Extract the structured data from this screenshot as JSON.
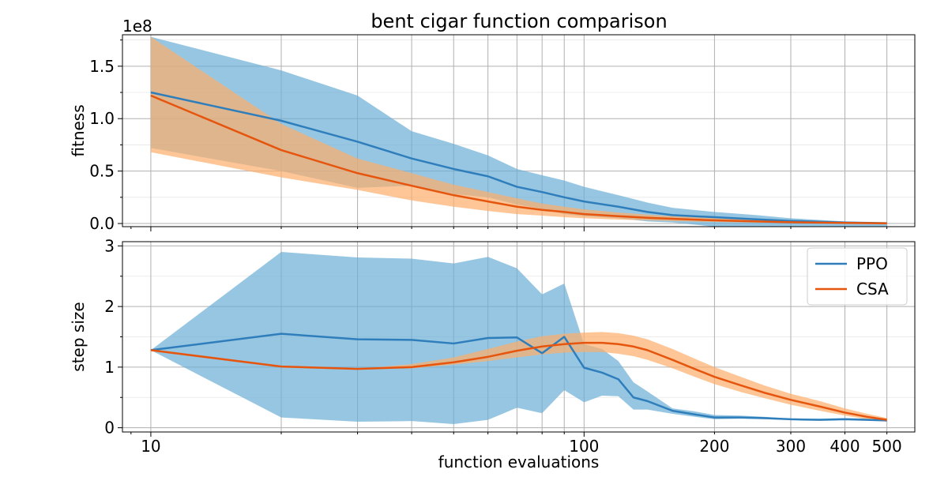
{
  "title": "bent cigar function comparison",
  "chart_data": [
    {
      "type": "line",
      "title": "bent cigar function comparison",
      "xlabel": "",
      "ylabel": "fitness",
      "x_scale": "log",
      "xlim": [
        8.6,
        580
      ],
      "ylim": [
        -3000000,
        180000000
      ],
      "y_offset_text": "1e8",
      "yticks": [
        0,
        50000000,
        100000000,
        150000000
      ],
      "yticklabels": [
        "0.0",
        "0.5",
        "1.0",
        "1.5"
      ],
      "grid": true,
      "series": [
        {
          "name": "PPO",
          "color": "#2f7ebc",
          "band_color": "#6baed6",
          "x": [
            10,
            20,
            30,
            40,
            50,
            60,
            70,
            80,
            90,
            100,
            120,
            140,
            160,
            200,
            250,
            300,
            400,
            500
          ],
          "values": [
            125000000,
            98000000,
            78000000,
            62000000,
            52000000,
            45000000,
            35000000,
            30000000,
            25000000,
            21000000,
            16000000,
            11000000,
            8000000,
            6000000,
            4000000,
            2500000,
            1000000,
            300000
          ],
          "upper": [
            178000000,
            146000000,
            122000000,
            88000000,
            76000000,
            65000000,
            52000000,
            46000000,
            41000000,
            35000000,
            27000000,
            20000000,
            15000000,
            11000000,
            8000000,
            5000000,
            2000000,
            800000
          ],
          "lower": [
            72000000,
            50000000,
            34000000,
            36000000,
            28000000,
            25000000,
            18000000,
            14000000,
            9000000,
            7000000,
            5000000,
            2000000,
            1000000,
            -3000000,
            -3000000,
            -3000000,
            -3000000,
            -3000000
          ]
        },
        {
          "name": "CSA",
          "color": "#e6550d",
          "band_color": "#fdae6b",
          "x": [
            10,
            20,
            30,
            40,
            50,
            60,
            70,
            80,
            90,
            100,
            120,
            140,
            160,
            200,
            250,
            300,
            400,
            500
          ],
          "values": [
            122000000,
            70000000,
            48000000,
            36000000,
            27000000,
            21000000,
            16000000,
            13000000,
            11000000,
            9000000,
            7000000,
            5500000,
            4500000,
            3000000,
            2000000,
            1200000,
            600000,
            200000
          ],
          "upper": [
            178000000,
            95000000,
            62000000,
            48000000,
            37000000,
            30000000,
            24000000,
            19000000,
            16000000,
            13500000,
            10500000,
            8500000,
            7000000,
            5000000,
            3500000,
            2200000,
            1200000,
            400000
          ],
          "lower": [
            68000000,
            44000000,
            32000000,
            22000000,
            16000000,
            12000000,
            9000000,
            7500000,
            6000000,
            5000000,
            3800000,
            3000000,
            2400000,
            1500000,
            900000,
            500000,
            200000,
            50000
          ]
        }
      ]
    },
    {
      "type": "line",
      "title": "",
      "xlabel": "function evaluations",
      "ylabel": "step size",
      "x_scale": "log",
      "xlim": [
        8.6,
        580
      ],
      "ylim": [
        -0.07,
        3.07
      ],
      "xticks": [
        10,
        100,
        200,
        300,
        400,
        500
      ],
      "xticklabels": [
        "10",
        "100",
        "200",
        "300",
        "400",
        "500"
      ],
      "yticks": [
        0,
        1,
        2,
        3
      ],
      "yticklabels": [
        "0",
        "1",
        "2",
        "3"
      ],
      "grid": true,
      "legend": "top-right",
      "series": [
        {
          "name": "PPO",
          "color": "#2f7ebc",
          "band_color": "#6baed6",
          "x": [
            10,
            20,
            30,
            40,
            50,
            60,
            70,
            80,
            90,
            100,
            110,
            120,
            130,
            140,
            160,
            180,
            200,
            230,
            260,
            300,
            350,
            400,
            450,
            500
          ],
          "values": [
            1.28,
            1.55,
            1.46,
            1.45,
            1.39,
            1.48,
            1.49,
            1.23,
            1.5,
            0.99,
            0.91,
            0.8,
            0.5,
            0.44,
            0.28,
            0.22,
            0.17,
            0.17,
            0.16,
            0.14,
            0.13,
            0.14,
            0.13,
            0.12
          ],
          "upper": [
            1.28,
            2.9,
            2.81,
            2.79,
            2.71,
            2.82,
            2.63,
            2.2,
            2.38,
            1.38,
            1.3,
            1.1,
            0.75,
            0.6,
            0.32,
            0.27,
            0.21,
            0.2,
            0.18,
            0.15,
            0.15,
            0.16,
            0.15,
            0.13
          ],
          "lower": [
            1.28,
            0.17,
            0.1,
            0.11,
            0.06,
            0.13,
            0.33,
            0.24,
            0.62,
            0.42,
            0.53,
            0.52,
            0.3,
            0.3,
            0.23,
            0.18,
            0.14,
            0.15,
            0.14,
            0.13,
            0.12,
            0.13,
            0.12,
            0.11
          ]
        },
        {
          "name": "CSA",
          "color": "#e6550d",
          "band_color": "#fdae6b",
          "x": [
            10,
            20,
            30,
            40,
            50,
            60,
            70,
            80,
            90,
            100,
            110,
            120,
            130,
            140,
            160,
            180,
            200,
            230,
            260,
            300,
            350,
            400,
            450,
            500
          ],
          "values": [
            1.28,
            1.01,
            0.97,
            1.0,
            1.08,
            1.17,
            1.27,
            1.34,
            1.38,
            1.4,
            1.4,
            1.38,
            1.34,
            1.28,
            1.12,
            0.97,
            0.84,
            0.7,
            0.58,
            0.46,
            0.35,
            0.25,
            0.18,
            0.13
          ],
          "upper": [
            1.28,
            1.01,
            0.97,
            1.05,
            1.16,
            1.3,
            1.42,
            1.51,
            1.55,
            1.57,
            1.58,
            1.56,
            1.52,
            1.46,
            1.3,
            1.14,
            1.0,
            0.84,
            0.7,
            0.56,
            0.44,
            0.32,
            0.23,
            0.16
          ],
          "lower": [
            1.28,
            1.01,
            0.97,
            0.98,
            1.04,
            1.1,
            1.16,
            1.21,
            1.24,
            1.25,
            1.25,
            1.22,
            1.18,
            1.12,
            0.98,
            0.84,
            0.72,
            0.59,
            0.49,
            0.38,
            0.28,
            0.2,
            0.14,
            0.1
          ]
        }
      ]
    }
  ]
}
